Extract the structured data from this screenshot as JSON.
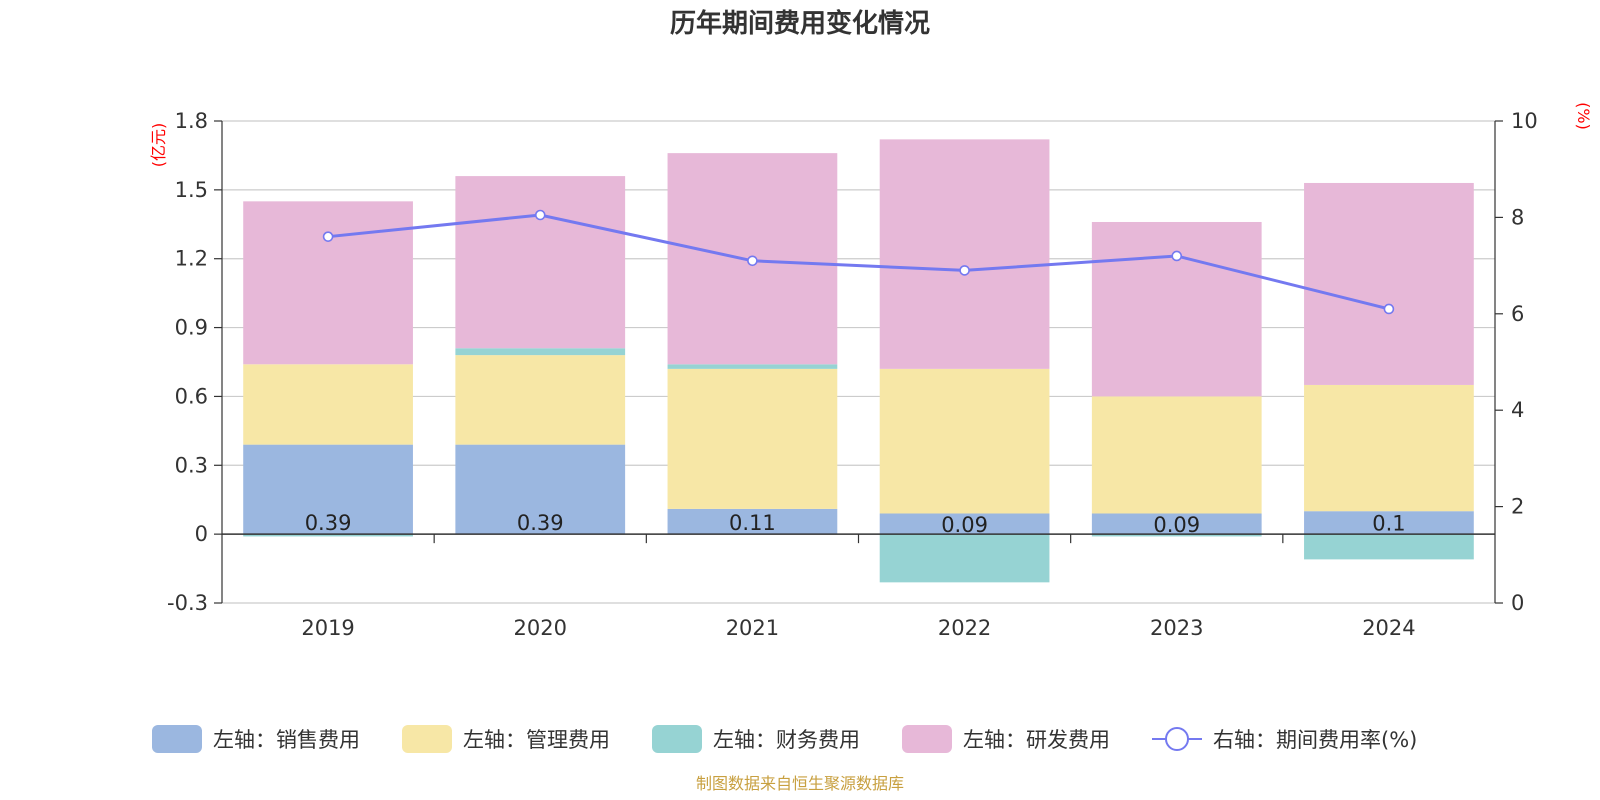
{
  "chart_data": {
    "type": "bar",
    "title": "历年期间费用变化情况",
    "categories": [
      "2019",
      "2020",
      "2021",
      "2022",
      "2023",
      "2024"
    ],
    "left_axis": {
      "unit": "(亿元)",
      "ylim": [
        -0.3,
        1.8
      ],
      "ticks": [
        -0.3,
        0,
        0.3,
        0.6,
        0.9,
        1.2,
        1.5,
        1.8
      ]
    },
    "right_axis": {
      "unit": "(%)",
      "ylim": [
        0,
        10
      ],
      "ticks": [
        0,
        2,
        4,
        6,
        8,
        10
      ]
    },
    "series": [
      {
        "name": "左轴：销售费用",
        "type": "bar",
        "axis": "left",
        "color": "#9bb7e0",
        "values": [
          0.39,
          0.39,
          0.11,
          0.09,
          0.09,
          0.1
        ],
        "labels": [
          "0.39",
          "0.39",
          "0.11",
          "0.09",
          "0.09",
          "0.1"
        ]
      },
      {
        "name": "左轴：管理费用",
        "type": "bar",
        "axis": "left",
        "color": "#f7e7a6",
        "values": [
          0.35,
          0.39,
          0.61,
          0.63,
          0.51,
          0.55
        ]
      },
      {
        "name": "左轴：财务费用",
        "type": "bar",
        "axis": "left",
        "color": "#96d3d3",
        "values": [
          -0.01,
          0.03,
          0.02,
          -0.21,
          -0.01,
          -0.11
        ]
      },
      {
        "name": "左轴：研发费用",
        "type": "bar",
        "axis": "left",
        "color": "#e7b8d8",
        "values": [
          0.71,
          0.75,
          0.92,
          1.0,
          0.76,
          0.88
        ]
      },
      {
        "name": "右轴：期间费用率(%)",
        "type": "line",
        "axis": "right",
        "color": "#7479f0",
        "values": [
          7.6,
          8.05,
          7.1,
          6.9,
          7.2,
          6.1
        ]
      }
    ],
    "legend_position": "bottom",
    "source": "制图数据来自恒生聚源数据库"
  }
}
